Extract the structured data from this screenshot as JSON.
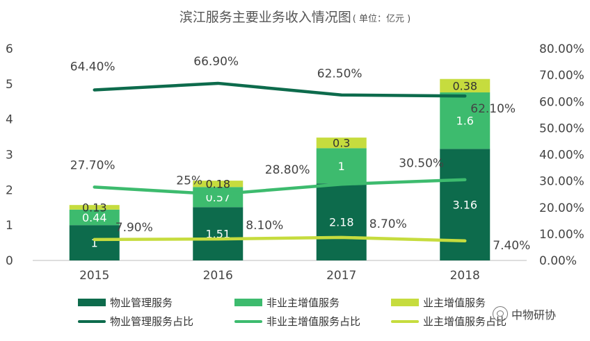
{
  "title": "滨江服务主要业务收入情况图",
  "title_unit": "( 单位：亿元 )",
  "watermark": "中物研协",
  "chart_data": {
    "type": "bar",
    "stacked": true,
    "categories": [
      "2015",
      "2016",
      "2017",
      "2018"
    ],
    "ylim_left": [
      0,
      6
    ],
    "yticks_left": [
      "0",
      "1",
      "2",
      "3",
      "4",
      "5",
      "6"
    ],
    "ylim_right": [
      0,
      80
    ],
    "yticks_right": [
      "0.00%",
      "10.00%",
      "20.00%",
      "30.00%",
      "40.00%",
      "50.00%",
      "60.00%",
      "70.00%",
      "80.00%"
    ],
    "bar_series": [
      {
        "name": "物业管理服务",
        "values": [
          1,
          1.51,
          2.18,
          3.16
        ],
        "labels": [
          "1",
          "1.51",
          "2.18",
          "3.16"
        ],
        "color": "#0d6b4c"
      },
      {
        "name": "非业主增值服务",
        "values": [
          0.44,
          0.57,
          1,
          1.6
        ],
        "labels": [
          "0.44",
          "0.57",
          "1",
          "1.6"
        ],
        "color": "#3dbb6e"
      },
      {
        "name": "业主增值服务",
        "values": [
          0.13,
          0.18,
          0.3,
          0.38
        ],
        "labels": [
          "0.13",
          "0.18",
          "0.3",
          "0.38"
        ],
        "color": "#c6dc3e"
      }
    ],
    "line_series": [
      {
        "name": "物业管理服务占比",
        "values": [
          64.4,
          66.9,
          62.5,
          62.1
        ],
        "labels": [
          "64.40%",
          "66.90%",
          "62.50%",
          "62.10%"
        ],
        "color": "#0d6b4c"
      },
      {
        "name": "非业主增值服务占比",
        "values": [
          27.7,
          25,
          28.8,
          30.5
        ],
        "labels": [
          "27.70%",
          "25%",
          "28.80%",
          "30.50%"
        ],
        "color": "#3dbb6e"
      },
      {
        "name": "业主增值服务占比",
        "values": [
          7.9,
          8.1,
          8.7,
          7.4
        ],
        "labels": [
          "7.90%",
          "8.10%",
          "8.70%",
          "7.40%"
        ],
        "color": "#c6dc3e"
      }
    ],
    "legend_position": "bottom",
    "grid": false
  }
}
